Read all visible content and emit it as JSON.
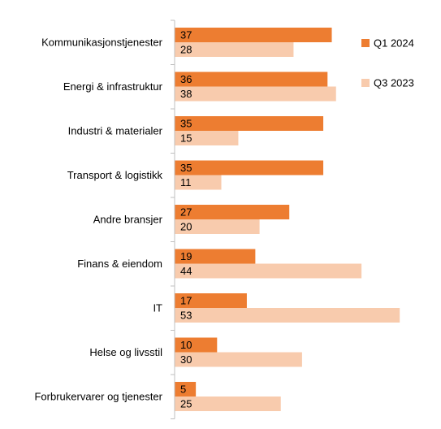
{
  "chart_data": {
    "type": "bar",
    "orientation": "horizontal",
    "categories": [
      "Kommunikasjonstjenester",
      "Energi & infrastruktur",
      "Industri & materialer",
      "Transport & logistikk",
      "Andre bransjer",
      "Finans & eiendom",
      "IT",
      "Helse og livsstil",
      "Forbrukervarer og tjenester"
    ],
    "series": [
      {
        "name": "Q1 2024",
        "color": "#ed7d31",
        "values": [
          37,
          36,
          35,
          35,
          27,
          19,
          17,
          10,
          5
        ]
      },
      {
        "name": "Q3 2023",
        "color": "#f8cbad",
        "values": [
          28,
          38,
          15,
          11,
          20,
          44,
          53,
          30,
          25
        ]
      }
    ],
    "legend": "right"
  }
}
